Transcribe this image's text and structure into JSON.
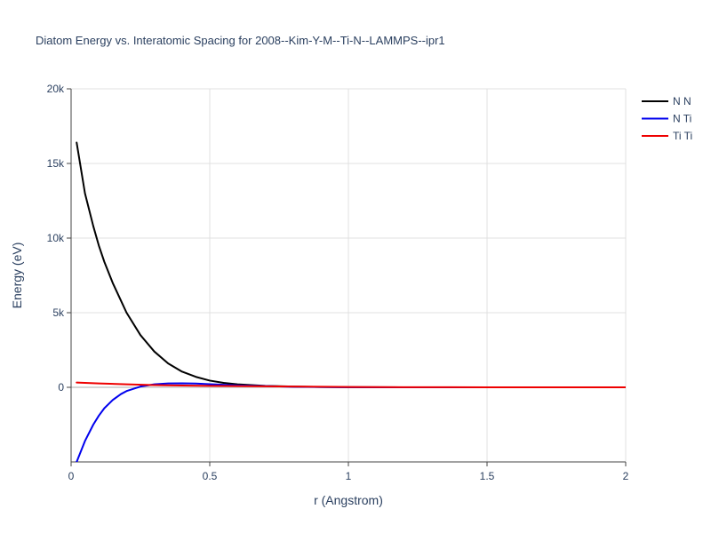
{
  "chart_data": {
    "type": "line",
    "title": "Diatom Energy vs. Interatomic Spacing for 2008--Kim-Y-M--Ti-N--LAMMPS--ipr1",
    "xlabel": "r (Angstrom)",
    "ylabel": "Energy (eV)",
    "xlim": [
      0,
      2
    ],
    "ylim": [
      -5000,
      20000
    ],
    "x_ticks": [
      0,
      0.5,
      1,
      1.5,
      2
    ],
    "x_tick_labels": [
      "0",
      "0.5",
      "1",
      "1.5",
      "2"
    ],
    "y_ticks": [
      0,
      5000,
      10000,
      15000,
      20000
    ],
    "y_tick_labels": [
      "0",
      "5k",
      "10k",
      "15k",
      "20k"
    ],
    "grid": true,
    "legend_position": "top-right",
    "series": [
      {
        "name": "N N",
        "color": "#000000",
        "x": [
          0.02,
          0.05,
          0.08,
          0.1,
          0.12,
          0.15,
          0.18,
          0.2,
          0.25,
          0.3,
          0.35,
          0.4,
          0.45,
          0.5,
          0.55,
          0.6,
          0.7,
          0.8,
          0.9,
          1.0,
          1.2,
          1.5,
          2.0
        ],
        "y": [
          16400,
          13000,
          10800,
          9500,
          8400,
          7000,
          5800,
          5000,
          3500,
          2400,
          1600,
          1050,
          700,
          450,
          300,
          200,
          100,
          50,
          25,
          10,
          0,
          0,
          0
        ]
      },
      {
        "name": "N Ti",
        "color": "#0000ee",
        "x": [
          0.02,
          0.05,
          0.08,
          0.1,
          0.12,
          0.15,
          0.18,
          0.2,
          0.25,
          0.3,
          0.35,
          0.4,
          0.45,
          0.5,
          0.55,
          0.6,
          0.7,
          0.8,
          0.9,
          1.0,
          1.2,
          1.5,
          2.0
        ],
        "y": [
          -5000,
          -3600,
          -2500,
          -1900,
          -1400,
          -850,
          -450,
          -250,
          50,
          200,
          260,
          270,
          250,
          210,
          170,
          130,
          80,
          40,
          20,
          5,
          0,
          0,
          0
        ]
      },
      {
        "name": "Ti Ti",
        "color": "#ee0000",
        "x": [
          0.02,
          0.1,
          0.2,
          0.3,
          0.4,
          0.5,
          0.6,
          0.8,
          1.0,
          1.2,
          1.5,
          2.0
        ],
        "y": [
          320,
          260,
          200,
          150,
          120,
          100,
          80,
          50,
          25,
          10,
          0,
          0
        ]
      }
    ]
  }
}
